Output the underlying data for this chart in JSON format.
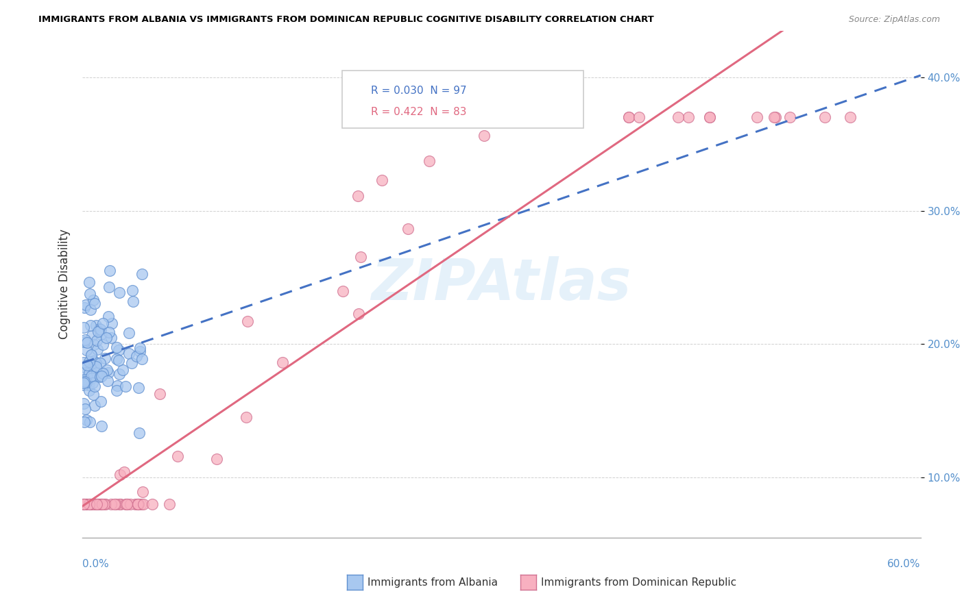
{
  "title": "IMMIGRANTS FROM ALBANIA VS IMMIGRANTS FROM DOMINICAN REPUBLIC COGNITIVE DISABILITY CORRELATION CHART",
  "source": "Source: ZipAtlas.com",
  "ylabel": "Cognitive Disability",
  "xlim": [
    0.0,
    0.6
  ],
  "ylim": [
    0.055,
    0.435
  ],
  "yticks": [
    0.1,
    0.2,
    0.3,
    0.4
  ],
  "ytick_labels": [
    "10.0%",
    "20.0%",
    "30.0%",
    "40.0%"
  ],
  "albania_color": "#a8c8f0",
  "albania_edge": "#6090d0",
  "albania_line_color": "#4472c4",
  "dr_color": "#f8b0c0",
  "dr_edge": "#d07090",
  "dr_line_color": "#e06880",
  "watermark": "ZIPAtlas",
  "R_albania": 0.03,
  "N_albania": 97,
  "R_dr": 0.422,
  "N_dr": 83,
  "bottom_legend": [
    "Immigrants from Albania",
    "Immigrants from Dominican Republic"
  ],
  "top_legend_labels": [
    "R = 0.030  N = 97",
    "R = 0.422  N = 83"
  ],
  "top_legend_colors": [
    "#4472c4",
    "#e06880"
  ]
}
